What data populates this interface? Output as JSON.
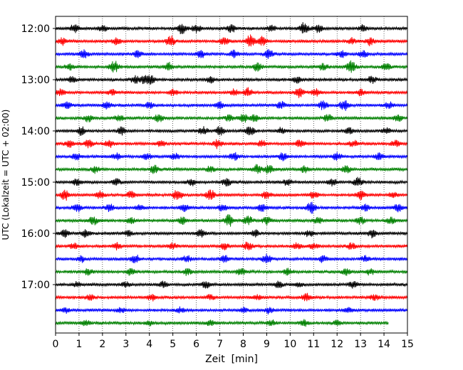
{
  "chart_data": {
    "type": "line",
    "title": "",
    "xlabel": "Zeit  [min]",
    "ylabel": "UTC (Lokalzeit = UTC + 02:00)",
    "xlim": [
      0,
      15
    ],
    "x_ticks": [
      "0",
      "1",
      "2",
      "3",
      "4",
      "5",
      "6",
      "7",
      "8",
      "9",
      "10",
      "11",
      "12",
      "13",
      "14",
      "15"
    ],
    "y_ticks": [
      "12:00",
      "13:00",
      "14:00",
      "15:00",
      "16:00",
      "17:00"
    ],
    "grid": "vertical dotted",
    "minutes_per_trace": 15,
    "colors": {
      "black": "#000000",
      "red": "#ff0000",
      "blue": "#0000ff",
      "green": "#008000"
    },
    "color_cycle": [
      "black",
      "red",
      "blue",
      "green"
    ],
    "traces": [
      {
        "start": "12:00",
        "end_min": 15,
        "color": "black",
        "bursts": [
          [
            0.8,
            0.7
          ],
          [
            2.0,
            0.5
          ],
          [
            5.4,
            0.9
          ],
          [
            6.0,
            0.7
          ],
          [
            7.5,
            0.6
          ],
          [
            9.2,
            0.5
          ],
          [
            10.6,
            1.0
          ],
          [
            11.2,
            0.6
          ],
          [
            13.1,
            0.5
          ]
        ]
      },
      {
        "start": "12:15",
        "end_min": 15,
        "color": "red",
        "bursts": [
          [
            0.3,
            0.6
          ],
          [
            2.6,
            0.5
          ],
          [
            4.9,
            0.9
          ],
          [
            7.2,
            0.6
          ],
          [
            8.3,
            1.0
          ],
          [
            8.8,
            0.7
          ],
          [
            12.6,
            0.5
          ],
          [
            13.4,
            0.6
          ]
        ]
      },
      {
        "start": "12:30",
        "end_min": 15,
        "color": "blue",
        "bursts": [
          [
            1.2,
            0.6
          ],
          [
            3.5,
            0.5
          ],
          [
            6.2,
            0.6
          ],
          [
            7.6,
            0.6
          ],
          [
            9.1,
            0.7
          ],
          [
            12.2,
            0.5
          ],
          [
            13.1,
            0.6
          ]
        ]
      },
      {
        "start": "12:45",
        "end_min": 15,
        "color": "green",
        "bursts": [
          [
            0.6,
            0.5
          ],
          [
            2.5,
            1.0
          ],
          [
            4.8,
            0.7
          ],
          [
            8.6,
            0.7
          ],
          [
            11.4,
            0.6
          ],
          [
            12.6,
            1.0
          ],
          [
            14.1,
            0.5
          ]
        ]
      },
      {
        "start": "13:00",
        "end_min": 15,
        "color": "black",
        "bursts": [
          [
            0.7,
            0.5
          ],
          [
            3.4,
            0.6
          ],
          [
            3.8,
            0.6
          ],
          [
            4.1,
            0.6
          ],
          [
            6.6,
            0.5
          ],
          [
            10.3,
            0.5
          ],
          [
            13.5,
            0.6
          ]
        ]
      },
      {
        "start": "13:15",
        "end_min": 15,
        "color": "red",
        "bursts": [
          [
            0.2,
            0.5
          ],
          [
            2.4,
            0.4
          ],
          [
            5.0,
            0.5
          ],
          [
            7.6,
            0.5
          ],
          [
            8.2,
            0.7
          ],
          [
            10.4,
            0.8
          ],
          [
            11.1,
            0.6
          ],
          [
            13.0,
            0.5
          ]
        ]
      },
      {
        "start": "13:30",
        "end_min": 15,
        "color": "blue",
        "bursts": [
          [
            0.5,
            0.5
          ],
          [
            2.2,
            0.5
          ],
          [
            4.0,
            0.5
          ],
          [
            7.0,
            0.5
          ],
          [
            9.6,
            0.6
          ],
          [
            11.4,
            0.7
          ],
          [
            12.3,
            0.9
          ],
          [
            14.2,
            0.5
          ]
        ]
      },
      {
        "start": "13:45",
        "end_min": 15,
        "color": "green",
        "bursts": [
          [
            1.4,
            0.5
          ],
          [
            2.7,
            0.5
          ],
          [
            4.4,
            0.7
          ],
          [
            7.4,
            0.5
          ],
          [
            8.0,
            0.7
          ],
          [
            8.5,
            0.6
          ],
          [
            11.6,
            0.6
          ],
          [
            14.6,
            0.5
          ]
        ]
      },
      {
        "start": "14:00",
        "end_min": 15,
        "color": "black",
        "bursts": [
          [
            1.1,
            0.7
          ],
          [
            2.8,
            0.6
          ],
          [
            6.3,
            0.7
          ],
          [
            7.0,
            0.7
          ],
          [
            8.3,
            0.8
          ],
          [
            9.6,
            0.5
          ],
          [
            12.5,
            0.5
          ],
          [
            14.1,
            0.5
          ]
        ]
      },
      {
        "start": "14:15",
        "end_min": 15,
        "color": "red",
        "bursts": [
          [
            0.6,
            0.6
          ],
          [
            1.4,
            0.6
          ],
          [
            2.3,
            0.6
          ],
          [
            4.5,
            0.5
          ],
          [
            6.9,
            0.7
          ],
          [
            8.8,
            0.5
          ],
          [
            10.4,
            0.6
          ],
          [
            12.7,
            0.5
          ],
          [
            14.5,
            0.5
          ]
        ]
      },
      {
        "start": "14:30",
        "end_min": 15,
        "color": "blue",
        "bursts": [
          [
            0.9,
            0.5
          ],
          [
            2.6,
            0.5
          ],
          [
            3.9,
            0.5
          ],
          [
            5.1,
            0.5
          ],
          [
            7.6,
            0.6
          ],
          [
            9.7,
            0.7
          ],
          [
            12.0,
            0.6
          ],
          [
            13.8,
            0.5
          ]
        ]
      },
      {
        "start": "14:45",
        "end_min": 15,
        "color": "green",
        "bursts": [
          [
            1.7,
            0.6
          ],
          [
            4.2,
            0.6
          ],
          [
            6.6,
            0.5
          ],
          [
            8.6,
            0.8
          ],
          [
            9.1,
            0.8
          ],
          [
            10.6,
            0.5
          ],
          [
            12.4,
            0.6
          ]
        ]
      },
      {
        "start": "15:00",
        "end_min": 15,
        "color": "black",
        "bursts": [
          [
            0.9,
            0.5
          ],
          [
            2.6,
            0.5
          ],
          [
            5.8,
            0.5
          ],
          [
            7.3,
            0.6
          ],
          [
            9.9,
            0.6
          ],
          [
            11.8,
            0.6
          ],
          [
            12.9,
            0.7
          ]
        ]
      },
      {
        "start": "15:15",
        "end_min": 15,
        "color": "red",
        "bursts": [
          [
            0.4,
            0.9
          ],
          [
            1.9,
            0.6
          ],
          [
            3.2,
            0.6
          ],
          [
            5.2,
            0.9
          ],
          [
            6.6,
            0.8
          ],
          [
            9.0,
            0.6
          ],
          [
            11.0,
            0.6
          ],
          [
            13.0,
            0.8
          ],
          [
            14.4,
            0.5
          ]
        ]
      },
      {
        "start": "15:30",
        "end_min": 15,
        "color": "blue",
        "bursts": [
          [
            0.9,
            0.7
          ],
          [
            2.3,
            0.6
          ],
          [
            3.6,
            0.5
          ],
          [
            5.5,
            0.6
          ],
          [
            7.1,
            0.5
          ],
          [
            8.8,
            0.6
          ],
          [
            10.9,
            1.0
          ],
          [
            13.2,
            0.5
          ],
          [
            14.6,
            0.6
          ]
        ]
      },
      {
        "start": "15:45",
        "end_min": 15,
        "color": "green",
        "bursts": [
          [
            1.6,
            0.7
          ],
          [
            3.2,
            0.5
          ],
          [
            5.4,
            0.6
          ],
          [
            7.4,
            1.0
          ],
          [
            8.2,
            0.7
          ],
          [
            9.0,
            0.6
          ],
          [
            11.2,
            0.5
          ],
          [
            13.0,
            0.6
          ],
          [
            14.3,
            0.5
          ]
        ]
      },
      {
        "start": "16:00",
        "end_min": 15,
        "color": "black",
        "bursts": [
          [
            0.4,
            0.6
          ],
          [
            1.3,
            0.6
          ],
          [
            3.1,
            0.5
          ],
          [
            6.2,
            0.6
          ],
          [
            8.5,
            0.6
          ],
          [
            10.8,
            0.5
          ],
          [
            13.5,
            0.7
          ]
        ]
      },
      {
        "start": "16:15",
        "end_min": 15,
        "color": "red",
        "bursts": [
          [
            0.8,
            0.5
          ],
          [
            2.6,
            0.5
          ],
          [
            5.0,
            0.5
          ],
          [
            7.2,
            0.5
          ],
          [
            8.2,
            0.7
          ],
          [
            10.3,
            0.5
          ],
          [
            11.0,
            0.5
          ],
          [
            12.6,
            0.5
          ]
        ]
      },
      {
        "start": "16:30",
        "end_min": 15,
        "color": "blue",
        "bursts": [
          [
            1.1,
            0.5
          ],
          [
            3.4,
            0.7
          ],
          [
            5.6,
            0.5
          ],
          [
            7.2,
            0.6
          ],
          [
            9.0,
            0.7
          ],
          [
            11.4,
            0.5
          ],
          [
            13.2,
            0.5
          ]
        ]
      },
      {
        "start": "16:45",
        "end_min": 15,
        "color": "green",
        "bursts": [
          [
            1.4,
            0.5
          ],
          [
            3.2,
            0.5
          ],
          [
            5.6,
            0.5
          ],
          [
            7.9,
            0.6
          ],
          [
            9.9,
            0.5
          ],
          [
            12.4,
            0.5
          ],
          [
            13.4,
            0.5
          ]
        ]
      },
      {
        "start": "17:00",
        "end_min": 15,
        "color": "black",
        "bursts": [
          [
            0.9,
            0.4
          ],
          [
            3.0,
            0.4
          ],
          [
            4.6,
            0.5
          ],
          [
            6.4,
            0.5
          ],
          [
            9.5,
            0.5
          ],
          [
            10.4,
            0.4
          ],
          [
            12.7,
            0.5
          ]
        ]
      },
      {
        "start": "17:15",
        "end_min": 15,
        "color": "red",
        "bursts": [
          [
            1.5,
            0.4
          ],
          [
            4.1,
            0.5
          ],
          [
            6.6,
            0.4
          ],
          [
            8.6,
            0.4
          ],
          [
            10.7,
            0.6
          ],
          [
            13.6,
            0.4
          ]
        ]
      },
      {
        "start": "17:30",
        "end_min": 15,
        "color": "blue",
        "bursts": [
          [
            0.4,
            0.5
          ],
          [
            2.8,
            0.4
          ],
          [
            5.3,
            0.4
          ],
          [
            8.0,
            0.4
          ],
          [
            9.1,
            0.5
          ],
          [
            12.5,
            0.4
          ]
        ]
      },
      {
        "start": "17:45",
        "end_min": 14.2,
        "color": "green",
        "bursts": [
          [
            1.3,
            0.4
          ],
          [
            4.0,
            0.4
          ],
          [
            6.6,
            0.4
          ],
          [
            9.2,
            0.4
          ],
          [
            10.6,
            0.5
          ],
          [
            12.0,
            0.4
          ]
        ]
      }
    ]
  }
}
